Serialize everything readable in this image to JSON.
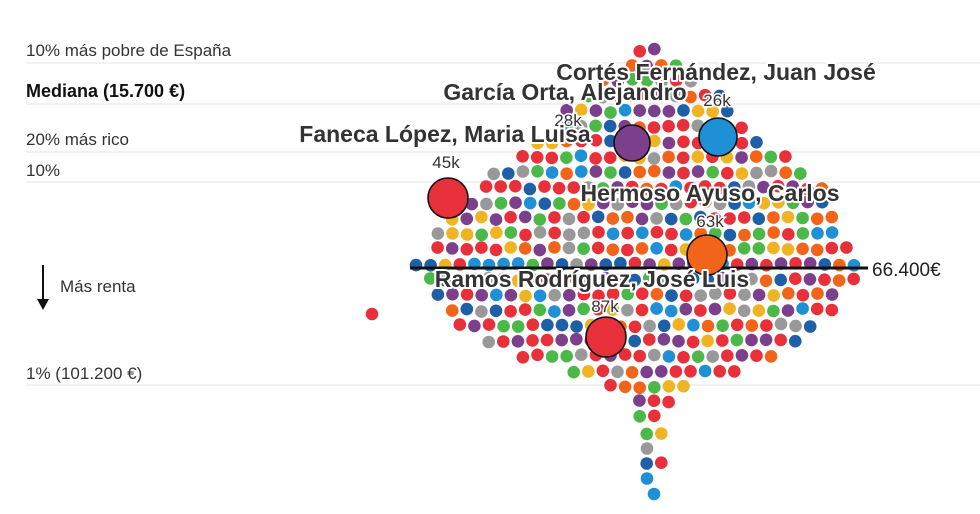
{
  "chart_data": {
    "type": "scatter",
    "title": "",
    "xlabel": "",
    "ylabel": "",
    "direction_label": "Más renta",
    "reference_lines": [
      {
        "label": "10% más pobre de España",
        "bold": false
      },
      {
        "label": "Mediana (15.700 €)",
        "bold": true
      },
      {
        "label": "20% más rico",
        "bold": false
      },
      {
        "label": "10%",
        "bold": false
      },
      {
        "label": "1% (101.200 €)",
        "bold": false
      }
    ],
    "marker_line": {
      "label": "66.400€"
    },
    "highlighted": [
      {
        "name": "Cortés Fernández, Juan José",
        "value": "26k",
        "color": "#1f8fd6"
      },
      {
        "name": "García Orta, Alejandro",
        "value": "28k",
        "color": "#7b3f8c"
      },
      {
        "name": "Faneca López, Maria Luisa",
        "value": "45k",
        "color": "#e8303a"
      },
      {
        "name": "Hermoso Ayuso, Carlos",
        "value": "63k",
        "color": "#f26419"
      },
      {
        "name": "Ramos Rodríguez, José Luis",
        "value": "87k",
        "color": "#e8303a"
      }
    ],
    "palette": [
      "#e8303a",
      "#e8303a",
      "#e8303a",
      "#7b3f8c",
      "#7b3f8c",
      "#1f8fd6",
      "#1f5fa8",
      "#4cb848",
      "#f26419",
      "#f0b323",
      "#999999"
    ],
    "rows": [
      {
        "y": 0,
        "n": 2
      },
      {
        "y": 1,
        "n": 4
      },
      {
        "y": 2,
        "n": 7
      },
      {
        "y": 3,
        "n": 10
      },
      {
        "y": 4,
        "n": 12
      },
      {
        "y": 5,
        "n": 13
      },
      {
        "y": 6,
        "n": 16
      },
      {
        "y": 7,
        "n": 19
      },
      {
        "y": 8,
        "n": 22
      },
      {
        "y": 9,
        "n": 24
      },
      {
        "y": 10,
        "n": 25
      },
      {
        "y": 11,
        "n": 27
      },
      {
        "y": 12,
        "n": 28
      },
      {
        "y": 13,
        "n": 29
      },
      {
        "y": 14,
        "n": 31
      },
      {
        "y": 15,
        "n": 30
      },
      {
        "y": 16,
        "n": 28
      },
      {
        "y": 17,
        "n": 27
      },
      {
        "y": 18,
        "n": 25
      },
      {
        "y": 19,
        "n": 22
      },
      {
        "y": 20,
        "n": 18
      },
      {
        "y": 21,
        "n": 12
      },
      {
        "y": 22,
        "n": 6
      },
      {
        "y": 23,
        "n": 3
      },
      {
        "y": 24,
        "n": 2
      },
      {
        "y": 25,
        "n": 2
      },
      {
        "y": 26,
        "n": 1
      },
      {
        "y": 27,
        "n": 2
      },
      {
        "y": 28,
        "n": 1
      },
      {
        "y": 29,
        "n": 1
      }
    ]
  }
}
